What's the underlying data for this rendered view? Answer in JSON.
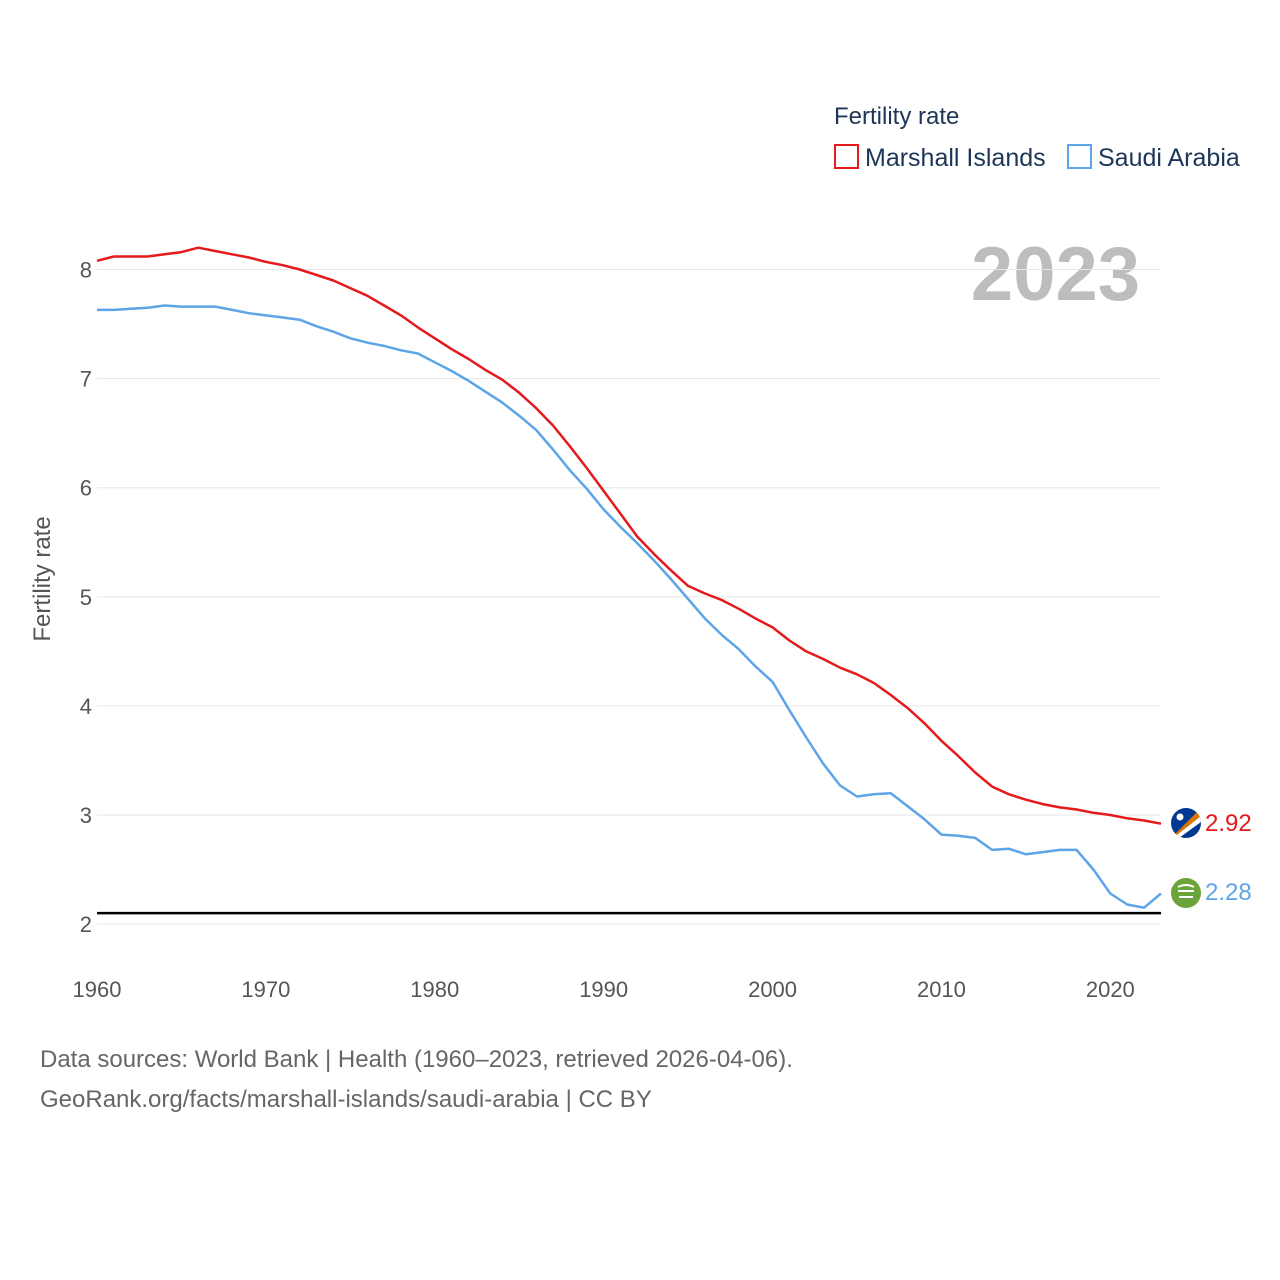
{
  "chart_data": {
    "type": "line",
    "ylabel": "Fertility rate",
    "legend_title": "Fertility rate",
    "legend_position": "top-right",
    "year_overlay": "2023",
    "xlim": [
      1960,
      2023
    ],
    "ylim": [
      1.9,
      8.5
    ],
    "x_ticks": [
      1960,
      1970,
      1980,
      1990,
      2000,
      2010,
      2020
    ],
    "y_ticks": [
      2,
      3,
      4,
      5,
      6,
      7,
      8
    ],
    "reference_line": 2.1,
    "grid": true,
    "x": [
      1960,
      1961,
      1962,
      1963,
      1964,
      1965,
      1966,
      1967,
      1968,
      1969,
      1970,
      1971,
      1972,
      1973,
      1974,
      1975,
      1976,
      1977,
      1978,
      1979,
      1980,
      1981,
      1982,
      1983,
      1984,
      1985,
      1986,
      1987,
      1988,
      1989,
      1990,
      1991,
      1992,
      1993,
      1994,
      1995,
      1996,
      1997,
      1998,
      1999,
      2000,
      2001,
      2002,
      2003,
      2004,
      2005,
      2006,
      2007,
      2008,
      2009,
      2010,
      2011,
      2012,
      2013,
      2014,
      2015,
      2016,
      2017,
      2018,
      2019,
      2020,
      2021,
      2022,
      2023
    ],
    "series": [
      {
        "name": "Marshall Islands",
        "color": "#e41a1c",
        "end_label": "2.92",
        "values": [
          8.08,
          8.12,
          8.12,
          8.12,
          8.14,
          8.16,
          8.2,
          8.17,
          8.14,
          8.11,
          8.07,
          8.04,
          8.0,
          7.95,
          7.9,
          7.83,
          7.76,
          7.67,
          7.58,
          7.47,
          7.37,
          7.27,
          7.18,
          7.08,
          6.99,
          6.87,
          6.73,
          6.57,
          6.38,
          6.18,
          5.97,
          5.76,
          5.55,
          5.39,
          5.24,
          5.1,
          5.03,
          4.97,
          4.89,
          4.8,
          4.72,
          4.6,
          4.5,
          4.43,
          4.35,
          4.29,
          4.21,
          4.1,
          3.98,
          3.84,
          3.68,
          3.54,
          3.39,
          3.26,
          3.19,
          3.14,
          3.1,
          3.07,
          3.05,
          3.02,
          3.0,
          2.97,
          2.95,
          2.92
        ]
      },
      {
        "name": "Saudi Arabia",
        "color": "#5da5e8",
        "end_label": "2.28",
        "values": [
          7.63,
          7.63,
          7.64,
          7.65,
          7.67,
          7.66,
          7.66,
          7.66,
          7.63,
          7.6,
          7.58,
          7.56,
          7.54,
          7.48,
          7.43,
          7.37,
          7.33,
          7.3,
          7.26,
          7.23,
          7.15,
          7.07,
          6.98,
          6.88,
          6.78,
          6.66,
          6.53,
          6.35,
          6.16,
          5.99,
          5.8,
          5.64,
          5.49,
          5.33,
          5.16,
          4.98,
          4.8,
          4.65,
          4.52,
          4.36,
          4.22,
          3.96,
          3.71,
          3.47,
          3.27,
          3.17,
          3.19,
          3.2,
          3.08,
          2.96,
          2.82,
          2.81,
          2.79,
          2.68,
          2.69,
          2.64,
          2.66,
          2.68,
          2.68,
          2.5,
          2.28,
          2.18,
          2.15,
          2.28
        ]
      }
    ]
  },
  "footer": {
    "line1": "Data sources: World Bank | Health (1960–2023, retrieved 2026-04-06).",
    "line2": "GeoRank.org/facts/marshall-islands/saudi-arabia | CC BY"
  }
}
